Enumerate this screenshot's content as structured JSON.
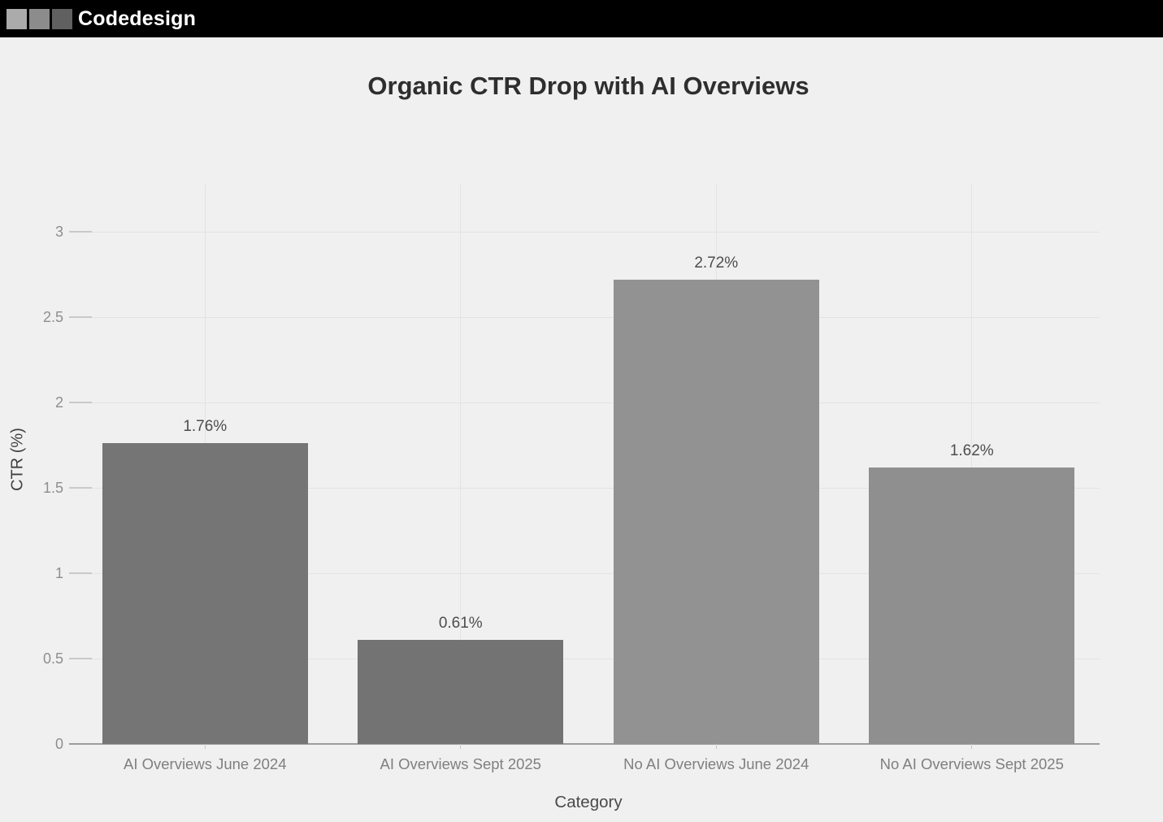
{
  "header": {
    "brand": "Codedesign",
    "background": "#000000",
    "logo_squares": [
      "#ababab",
      "#8c8c8c",
      "#606060"
    ]
  },
  "chart_data": {
    "type": "bar",
    "title": "Organic CTR Drop with AI Overviews",
    "categories": [
      "AI Overviews June 2024",
      "AI Overviews Sept 2025",
      "No AI Overviews June 2024",
      "No AI Overviews Sept 2025"
    ],
    "values": [
      1.76,
      0.61,
      2.72,
      1.62
    ],
    "value_labels": [
      "1.76%",
      "0.61%",
      "2.72%",
      "1.62%"
    ],
    "bar_colors": [
      "#757575",
      "#737373",
      "#929292",
      "#8f8f8f"
    ],
    "xlabel": "Category",
    "ylabel": "CTR (%)",
    "ylim": [
      0,
      3
    ],
    "yticks": [
      0,
      0.5,
      1,
      1.5,
      2,
      2.5,
      3
    ],
    "ytick_labels": [
      "0",
      "0.5",
      "1",
      "1.5",
      "2",
      "2.5",
      "3"
    ],
    "grid": true,
    "legend": false,
    "background": "#f0f0f0"
  }
}
